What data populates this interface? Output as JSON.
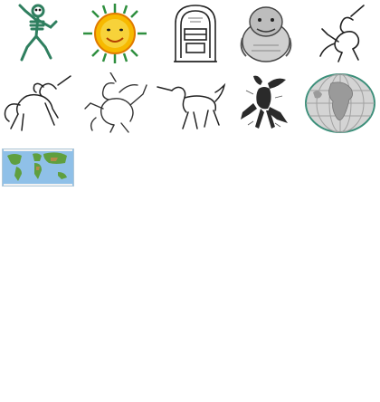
{
  "gallery": {
    "items": [
      {
        "icon": "dancing-skeleton-clipart"
      },
      {
        "icon": "smiling-sun-clipart"
      },
      {
        "icon": "jukebox-lineart-clipart"
      },
      {
        "icon": "troll-sketch-clipart"
      },
      {
        "icon": "rearing-unicorn-small-clipart"
      },
      {
        "icon": "rearing-unicorn-clipart"
      },
      {
        "icon": "heraldic-unicorn-clipart"
      },
      {
        "icon": "unicorn-trotting-clipart"
      },
      {
        "icon": "winged-demon-sketch-clipart"
      },
      {
        "icon": "globe-africa-clipart"
      },
      {
        "icon": "world-map-clipart"
      }
    ]
  },
  "colors": {
    "background": "#ffffff",
    "skeleton": "#2f7f5f",
    "sun_fill": "#f7b900",
    "sun_ray": "#2f8f3f",
    "ocean": "#8fc0e8",
    "land": "#5f9f3f",
    "globe": "#c8c8c8"
  }
}
